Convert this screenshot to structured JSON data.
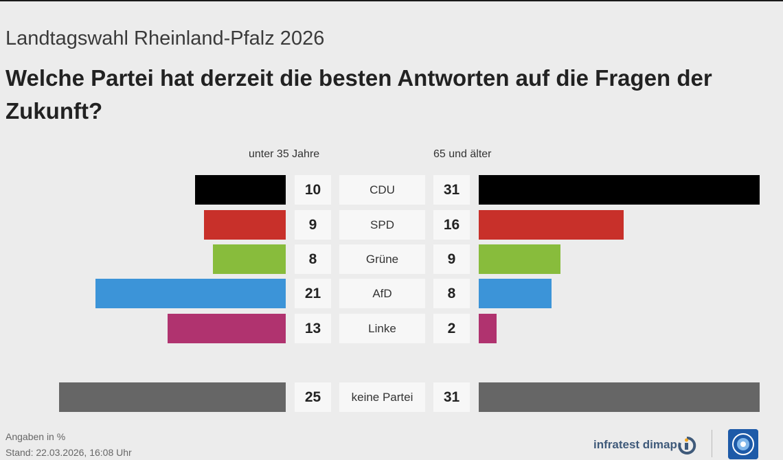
{
  "header": {
    "subtitle": "Landtagswahl Rheinland-Pfalz 2026",
    "title": "Welche Partei hat derzeit die besten Antworten auf die Fragen der Zukunft?"
  },
  "chart_data": {
    "type": "bar",
    "orientation": "horizontal-butterfly",
    "categories": [
      "CDU",
      "SPD",
      "Grüne",
      "AfD",
      "Linke",
      "keine Partei"
    ],
    "series": [
      {
        "name": "unter 35 Jahre",
        "side": "left",
        "values": [
          10,
          9,
          8,
          21,
          13,
          25
        ]
      },
      {
        "name": "65 und älter",
        "side": "right",
        "values": [
          31,
          16,
          9,
          8,
          2,
          31
        ]
      }
    ],
    "colors": [
      "#000000",
      "#c8302a",
      "#88bc3c",
      "#3c94d8",
      "#b0336f",
      "#666666"
    ],
    "unit": "%",
    "grid": false
  },
  "footer": {
    "note": "Angaben in %",
    "stand": "Stand:  22.03.2026, 16:08 Uhr",
    "source": "infratest dimap"
  },
  "icons": {
    "source_mark": "infratest-dimap-logo-icon",
    "broadcaster": "ard-logo-icon"
  }
}
